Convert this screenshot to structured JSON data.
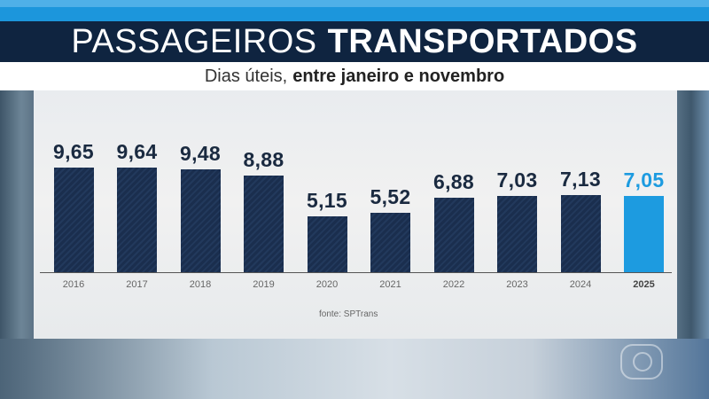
{
  "header": {
    "title_light": "PASSAGEIROS",
    "title_bold": "TRANSPORTADOS",
    "subtitle_light": "Dias úteis,",
    "subtitle_bold": "entre janeiro e novembro"
  },
  "source": "fonte: SPTrans",
  "colors": {
    "bar": "#1a2e4e",
    "highlight": "#1d9be0",
    "title_bg": "#0f2440",
    "accent_stripe": "#1c96dc"
  },
  "chart_data": {
    "type": "bar",
    "title": "PASSAGEIROS TRANSPORTADOS",
    "subtitle": "Dias úteis, entre janeiro e novembro",
    "categories": [
      "2016",
      "2017",
      "2018",
      "2019",
      "2020",
      "2021",
      "2022",
      "2023",
      "2024",
      "2025"
    ],
    "values": [
      9.65,
      9.64,
      9.48,
      8.88,
      5.15,
      5.52,
      6.88,
      7.03,
      7.13,
      7.05
    ],
    "labels": [
      "9,65",
      "9,64",
      "9,48",
      "8,88",
      "5,15",
      "5,52",
      "6,88",
      "7,03",
      "7,13",
      "7,05"
    ],
    "highlight_index": 9,
    "xlabel": "",
    "ylabel": "",
    "grid": false,
    "legend": null,
    "annotation": "fonte: SPTrans"
  }
}
